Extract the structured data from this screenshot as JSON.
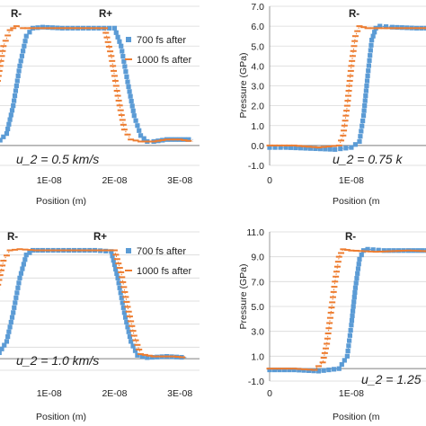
{
  "colors": {
    "series_700": "#5B9BD5",
    "series_1000": "#ED7D31",
    "grid": "#D9D9D9",
    "axis": "#7F7F7F",
    "text": "#222222"
  },
  "chart_data": [
    {
      "id": "top-left",
      "type": "scatter",
      "xlabel": "Position (m)",
      "ylabel": "",
      "xlim": [
        0,
        3.3e-08
      ],
      "ylim": [
        -1.0,
        7.0
      ],
      "x_ticks": [
        "1E-08",
        "2E-08",
        "3E-08"
      ],
      "y_ticks": [],
      "grid": "horizontal",
      "legend": "top-right",
      "annotations": [
        "R-",
        "R+"
      ],
      "math_label": "u_2 = 0.5 km/s",
      "series": [
        {
          "name": "700 fs after",
          "marker": "square",
          "x": [
            0,
            2e-09,
            3.5e-09,
            4.5e-09,
            5.5e-09,
            6.5e-09,
            7.5e-09,
            9e-09,
            1.2e-08,
            1.6e-08,
            2e-08,
            2.1e-08,
            2.2e-08,
            2.3e-08,
            2.4e-08,
            2.5e-08,
            2.6e-08,
            2.8e-08,
            3e-08,
            3.2e-08
          ],
          "y": [
            0.0,
            0.1,
            0.6,
            2.0,
            4.0,
            5.5,
            5.9,
            5.95,
            5.9,
            5.9,
            5.9,
            5.0,
            3.2,
            1.5,
            0.5,
            0.2,
            0.2,
            0.3,
            0.3,
            0.3
          ]
        },
        {
          "name": "1000 fs after",
          "marker": "dash",
          "x": [
            0,
            1e-09,
            2e-09,
            3e-09,
            4e-09,
            5e-09,
            6e-09,
            8e-09,
            1.2e-08,
            1.6e-08,
            1.85e-08,
            1.95e-08,
            2.05e-08,
            2.15e-08,
            2.25e-08,
            2.4e-08,
            2.6e-08,
            2.8e-08,
            3e-08,
            3.2e-08
          ],
          "y": [
            0.3,
            1.0,
            3.0,
            5.0,
            5.8,
            6.0,
            5.9,
            5.9,
            5.9,
            5.9,
            5.9,
            4.5,
            2.5,
            0.8,
            0.3,
            0.2,
            0.2,
            0.3,
            0.3,
            0.2
          ]
        }
      ]
    },
    {
      "id": "top-right",
      "type": "scatter",
      "xlabel": "Position (m",
      "ylabel": "Pressure (GPa)",
      "xlim": [
        0,
        2.2e-08
      ],
      "ylim": [
        -1.0,
        7.0
      ],
      "x_ticks": [
        "0",
        "1E-08",
        "2"
      ],
      "y_ticks": [
        "-1.0",
        "0.0",
        "1.0",
        "2.0",
        "3.0",
        "4.0",
        "5.0",
        "6.0",
        "7.0"
      ],
      "grid": "horizontal",
      "legend": "none",
      "annotations": [
        "R-"
      ],
      "math_label": "u_2 = 0.75 k",
      "series": [
        {
          "name": "700 fs after",
          "marker": "square",
          "x": [
            0,
            2e-09,
            5e-09,
            8e-09,
            1e-08,
            1.1e-08,
            1.15e-08,
            1.2e-08,
            1.25e-08,
            1.3e-08,
            1.35e-08,
            1.5e-08,
            1.8e-08,
            2.1e-08
          ],
          "y": [
            -0.1,
            -0.1,
            -0.15,
            -0.2,
            -0.1,
            0.2,
            1.5,
            3.5,
            5.3,
            5.9,
            6.0,
            5.95,
            5.9,
            5.9
          ]
        },
        {
          "name": "1000 fs after",
          "marker": "dash",
          "x": [
            0,
            3e-09,
            6e-09,
            8.5e-09,
            9e-09,
            9.5e-09,
            1e-08,
            1.05e-08,
            1.1e-08,
            1.2e-08,
            1.4e-08,
            1.7e-08,
            2.1e-08
          ],
          "y": [
            0.0,
            0.0,
            -0.1,
            0.0,
            0.5,
            2.0,
            4.0,
            5.5,
            6.0,
            5.9,
            5.9,
            5.9,
            5.9
          ]
        }
      ]
    },
    {
      "id": "bottom-left",
      "type": "scatter",
      "xlabel": "Position (m)",
      "ylabel": "",
      "xlim": [
        0,
        3.3e-08
      ],
      "ylim": [
        -1.0,
        11.0
      ],
      "x_ticks": [
        "1E-08",
        "2E-08",
        "3E-08"
      ],
      "y_ticks": [],
      "grid": "horizontal",
      "legend": "top-right",
      "annotations": [
        "R-",
        "R+"
      ],
      "math_label": "u_2 = 1.0 km/s",
      "series": [
        {
          "name": "700 fs after",
          "marker": "square",
          "x": [
            0,
            2e-09,
            3.5e-09,
            4.5e-09,
            5.5e-09,
            6.5e-09,
            7.5e-09,
            9e-09,
            1.3e-08,
            1.7e-08,
            1.95e-08,
            2.05e-08,
            2.15e-08,
            2.25e-08,
            2.35e-08,
            2.5e-08,
            2.8e-08,
            3.1e-08
          ],
          "y": [
            0.0,
            0.2,
            1.5,
            4.0,
            7.0,
            9.0,
            9.4,
            9.4,
            9.4,
            9.4,
            9.3,
            7.0,
            4.0,
            1.5,
            0.3,
            0.1,
            0.2,
            0.1
          ]
        },
        {
          "name": "1000 fs after",
          "marker": "dash",
          "x": [
            0,
            1e-09,
            2e-09,
            3e-09,
            4e-09,
            5.5e-09,
            8e-09,
            1.2e-08,
            1.7e-08,
            2e-08,
            2.1e-08,
            2.2e-08,
            2.3e-08,
            2.4e-08,
            2.6e-08,
            2.9e-08,
            3.1e-08
          ],
          "y": [
            0.5,
            2.5,
            6.0,
            8.5,
            9.4,
            9.5,
            9.4,
            9.4,
            9.4,
            9.4,
            7.5,
            4.5,
            2.0,
            0.4,
            0.2,
            0.2,
            0.1
          ]
        }
      ]
    },
    {
      "id": "bottom-right",
      "type": "scatter",
      "xlabel": "Position (m",
      "ylabel": "Pressure (GPa)",
      "xlim": [
        0,
        2.2e-08
      ],
      "ylim": [
        -1.0,
        11.0
      ],
      "x_ticks": [
        "0",
        "1E-08",
        "2"
      ],
      "y_ticks": [
        "-1.0",
        "1.0",
        "3.0",
        "5.0",
        "7.0",
        "9.0",
        "11.0"
      ],
      "grid": "horizontal",
      "legend": "none",
      "annotations": [
        "R-"
      ],
      "math_label": "u_2 = 1.25",
      "series": [
        {
          "name": "700 fs after",
          "marker": "square",
          "x": [
            0,
            3e-09,
            6e-09,
            8.5e-09,
            9.5e-09,
            1e-08,
            1.05e-08,
            1.1e-08,
            1.15e-08,
            1.2e-08,
            1.4e-08,
            1.7e-08,
            2.1e-08
          ],
          "y": [
            -0.1,
            -0.1,
            -0.2,
            0.0,
            1.0,
            3.5,
            6.5,
            8.8,
            9.5,
            9.6,
            9.5,
            9.5,
            9.5
          ]
        },
        {
          "name": "1000 fs after",
          "marker": "dash",
          "x": [
            0,
            3e-09,
            5.5e-09,
            6.5e-09,
            7e-09,
            7.5e-09,
            8e-09,
            8.5e-09,
            9e-09,
            1e-08,
            1.3e-08,
            1.7e-08,
            2.1e-08
          ],
          "y": [
            0.0,
            0.0,
            -0.1,
            0.5,
            2.0,
            4.5,
            7.0,
            9.0,
            9.6,
            9.5,
            9.4,
            9.5,
            9.4
          ]
        }
      ]
    }
  ]
}
